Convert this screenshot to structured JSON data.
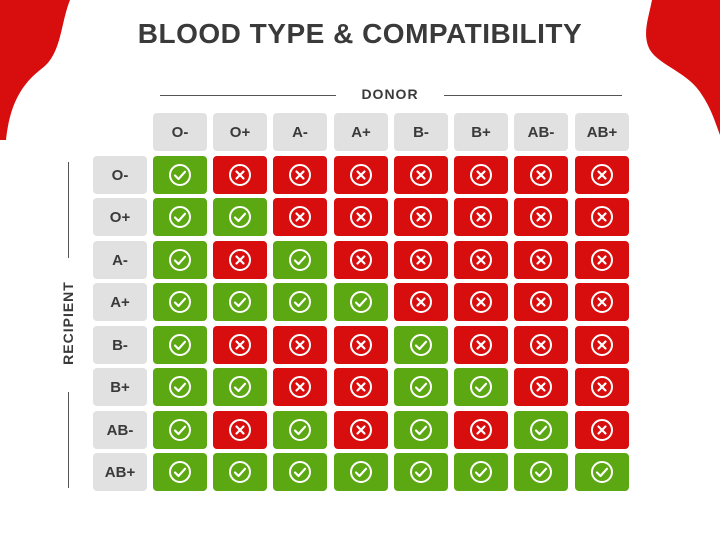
{
  "title": "BLOOD TYPE & COMPATIBILITY",
  "donor_label": "DONOR",
  "recipient_label": "RECIPIENT",
  "donor_types": [
    "O-",
    "O+",
    "A-",
    "A+",
    "B-",
    "B+",
    "AB-",
    "AB+"
  ],
  "recipient_types": [
    "O-",
    "O+",
    "A-",
    "A+",
    "B-",
    "B+",
    "AB-",
    "AB+"
  ],
  "compatibility": [
    [
      1,
      0,
      0,
      0,
      0,
      0,
      0,
      0
    ],
    [
      1,
      1,
      0,
      0,
      0,
      0,
      0,
      0
    ],
    [
      1,
      0,
      1,
      0,
      0,
      0,
      0,
      0
    ],
    [
      1,
      1,
      1,
      1,
      0,
      0,
      0,
      0
    ],
    [
      1,
      0,
      0,
      0,
      1,
      0,
      0,
      0
    ],
    [
      1,
      1,
      0,
      0,
      1,
      1,
      0,
      0
    ],
    [
      1,
      0,
      1,
      0,
      1,
      0,
      1,
      0
    ],
    [
      1,
      1,
      1,
      1,
      1,
      1,
      1,
      1
    ]
  ],
  "colors": {
    "compatible": "#5ba812",
    "incompatible": "#d80d0d",
    "header_bg": "#e1e1e1",
    "accent": "#d80d0d"
  },
  "icons": {
    "compatible": "check-circle-icon",
    "incompatible": "x-circle-icon"
  }
}
